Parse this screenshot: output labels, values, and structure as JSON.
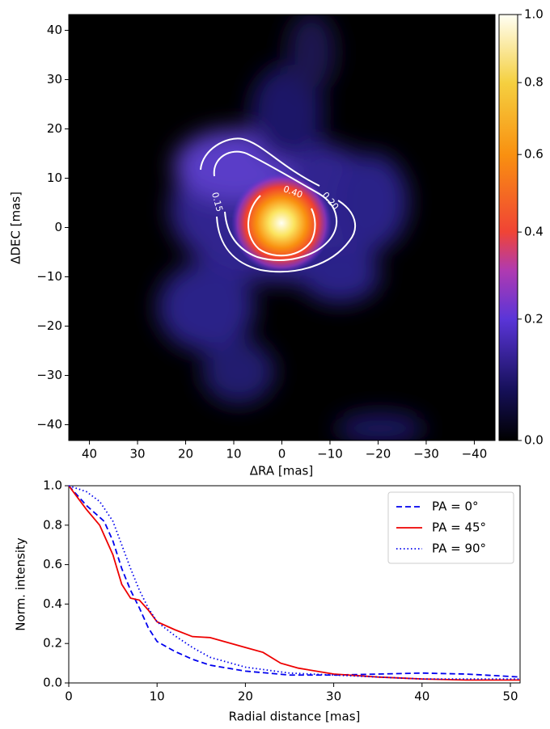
{
  "chart_data": [
    {
      "type": "image",
      "xlabel": "ΔRA [mas]",
      "ylabel": "ΔDEC [mas]",
      "xlim": [
        44.3,
        -44.3
      ],
      "ylim": [
        -43.2,
        43.2
      ],
      "xticks": [
        40,
        30,
        20,
        10,
        0,
        {
          "value": -10,
          "label": "−10"
        },
        {
          "value": -20,
          "label": "−20"
        },
        {
          "value": -30,
          "label": "−30"
        },
        {
          "value": -40,
          "label": "−40"
        }
      ],
      "yticks": [
        {
          "value": -40,
          "label": "−40"
        },
        {
          "value": -30,
          "label": "−30"
        },
        {
          "value": -20,
          "label": "−20"
        },
        {
          "value": -10,
          "label": "−10"
        },
        0,
        10,
        20,
        30,
        40
      ],
      "colorbar": {
        "lim": [
          0,
          1
        ],
        "gamma": 0.78,
        "ticks": [
          {
            "value": 0,
            "label": "0.0"
          },
          0.2,
          0.4,
          0.6,
          0.8,
          {
            "value": 1,
            "label": "1.0"
          }
        ]
      },
      "contours": [
        0.15,
        {
          "value": 0.2,
          "label": "0.20"
        },
        {
          "value": 0.4,
          "label": "0.40"
        }
      ]
    },
    {
      "type": "line",
      "xlabel": "Radial distance [mas]",
      "ylabel": "Norm. intensity",
      "xlim": [
        0,
        51.1
      ],
      "ylim": [
        0,
        1
      ],
      "xticks": [
        0,
        10,
        20,
        30,
        40,
        50
      ],
      "yticks": [
        {
          "value": 0,
          "label": "0.0"
        },
        0.2,
        0.4,
        0.6,
        0.8,
        {
          "value": 1,
          "label": "1.0"
        }
      ],
      "legend": "upper right",
      "series": [
        {
          "name": "PA = 0°",
          "color": "#0000ee",
          "linestyle": "dashed",
          "x": [
            0,
            2,
            4,
            5,
            6,
            7,
            8,
            9,
            10,
            12,
            14,
            16,
            20,
            25,
            30,
            35,
            40,
            45,
            51.1
          ],
          "values": [
            1.0,
            0.9,
            0.82,
            0.72,
            0.58,
            0.47,
            0.38,
            0.28,
            0.21,
            0.16,
            0.12,
            0.09,
            0.06,
            0.04,
            0.04,
            0.045,
            0.05,
            0.045,
            0.03
          ]
        },
        {
          "name": "PA = 45°",
          "color": "#ee0000",
          "linestyle": "solid",
          "x": [
            0,
            2,
            3.5,
            5,
            6,
            7,
            8,
            9,
            10,
            12,
            14,
            16,
            18,
            20,
            22,
            24,
            26,
            30,
            35,
            40,
            45,
            51.1
          ],
          "values": [
            1.0,
            0.88,
            0.8,
            0.65,
            0.5,
            0.43,
            0.42,
            0.37,
            0.31,
            0.27,
            0.235,
            0.23,
            0.205,
            0.18,
            0.155,
            0.1,
            0.075,
            0.045,
            0.03,
            0.02,
            0.015,
            0.015
          ]
        },
        {
          "name": "PA = 90°",
          "color": "#0000ee",
          "linestyle": "dotted",
          "x": [
            0,
            2,
            3.5,
            5,
            6,
            7,
            8,
            9,
            10,
            12,
            14,
            16,
            20,
            25,
            30,
            35,
            40,
            45,
            51.1
          ],
          "values": [
            1.0,
            0.97,
            0.92,
            0.82,
            0.7,
            0.58,
            0.47,
            0.38,
            0.31,
            0.24,
            0.18,
            0.13,
            0.08,
            0.05,
            0.04,
            0.03,
            0.02,
            0.02,
            0.02
          ]
        }
      ]
    }
  ]
}
